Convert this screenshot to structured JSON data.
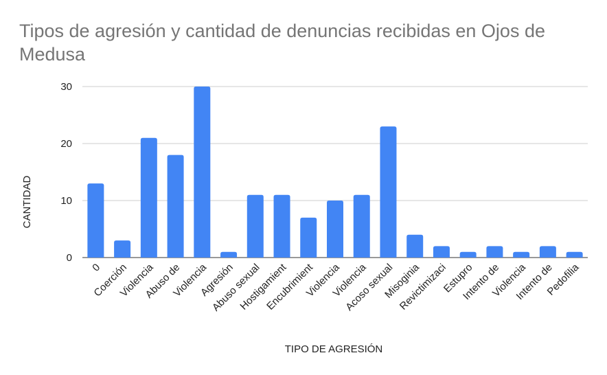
{
  "chart_data": {
    "type": "bar",
    "title": "Tipos de agresión y cantidad de denuncias recibidas en Ojos de Medusa",
    "xlabel": "TIPO DE AGRESIÓN",
    "ylabel": "CANTIDAD",
    "ylim": [
      0,
      30
    ],
    "yticks": [
      "0",
      "10",
      "20",
      "30"
    ],
    "grid": true,
    "legend": "none",
    "bar_color": "#4285f4",
    "categories": [
      "0",
      "Coerción",
      "Violencia",
      "Abuso de",
      "Violencia",
      "Agresión",
      "Abuso sexual",
      "Hostigamient",
      "Encubrimient",
      "Violencia",
      "Violencia",
      "Acoso sexual",
      "Misoginia",
      "Revictimizaci",
      "Estupro",
      "Intento de",
      "Violencia",
      "Intento de",
      "Pedofilia"
    ],
    "values": [
      13,
      3,
      21,
      18,
      30,
      1,
      11,
      11,
      7,
      10,
      11,
      23,
      4,
      2,
      1,
      2,
      1,
      2,
      1
    ]
  }
}
